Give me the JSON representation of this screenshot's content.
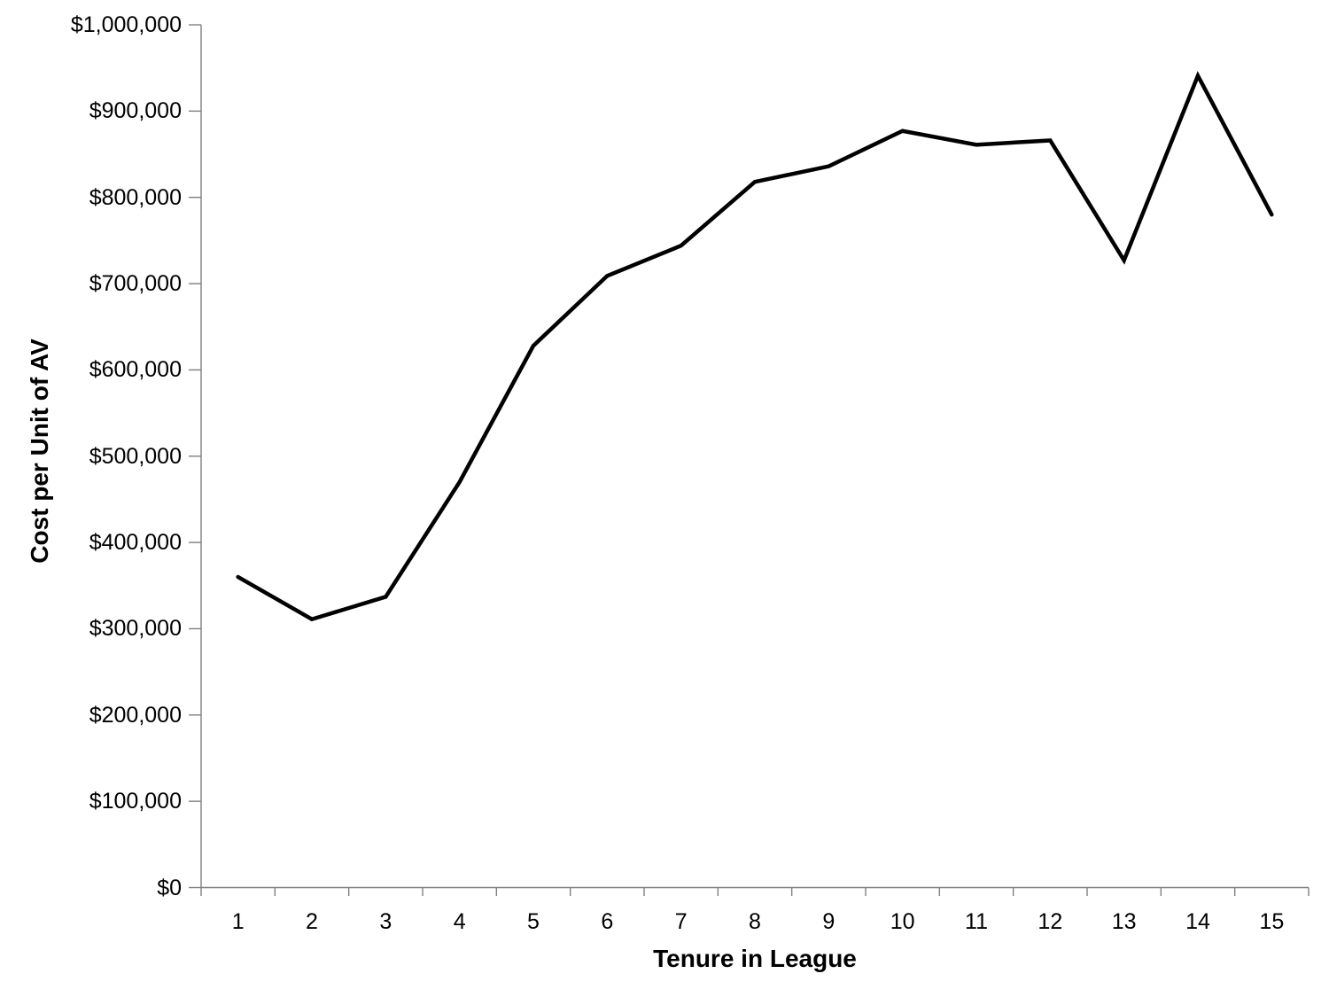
{
  "chart_data": {
    "type": "line",
    "title": "",
    "xlabel": "Tenure in League",
    "ylabel": "Cost per Unit of AV",
    "categories": [
      "1",
      "2",
      "3",
      "4",
      "5",
      "6",
      "7",
      "8",
      "9",
      "10",
      "11",
      "12",
      "13",
      "14",
      "15"
    ],
    "series": [
      {
        "name": "Cost per Unit of AV",
        "values": [
          360000,
          311000,
          337000,
          470000,
          628000,
          709000,
          744000,
          818000,
          836000,
          877000,
          861000,
          866000,
          727000,
          941000,
          780000
        ]
      }
    ],
    "ylim": [
      0,
      1000000
    ],
    "ytick_interval": 100000,
    "ytick_labels": [
      "$0",
      "$100,000",
      "$200,000",
      "$300,000",
      "$400,000",
      "$500,000",
      "$600,000",
      "$700,000",
      "$800,000",
      "$900,000",
      "$1,000,000"
    ],
    "grid": false,
    "legend_position": "none",
    "line_color": "#000000",
    "axis_color": "#7f7f7f",
    "text_color": "#000000"
  }
}
